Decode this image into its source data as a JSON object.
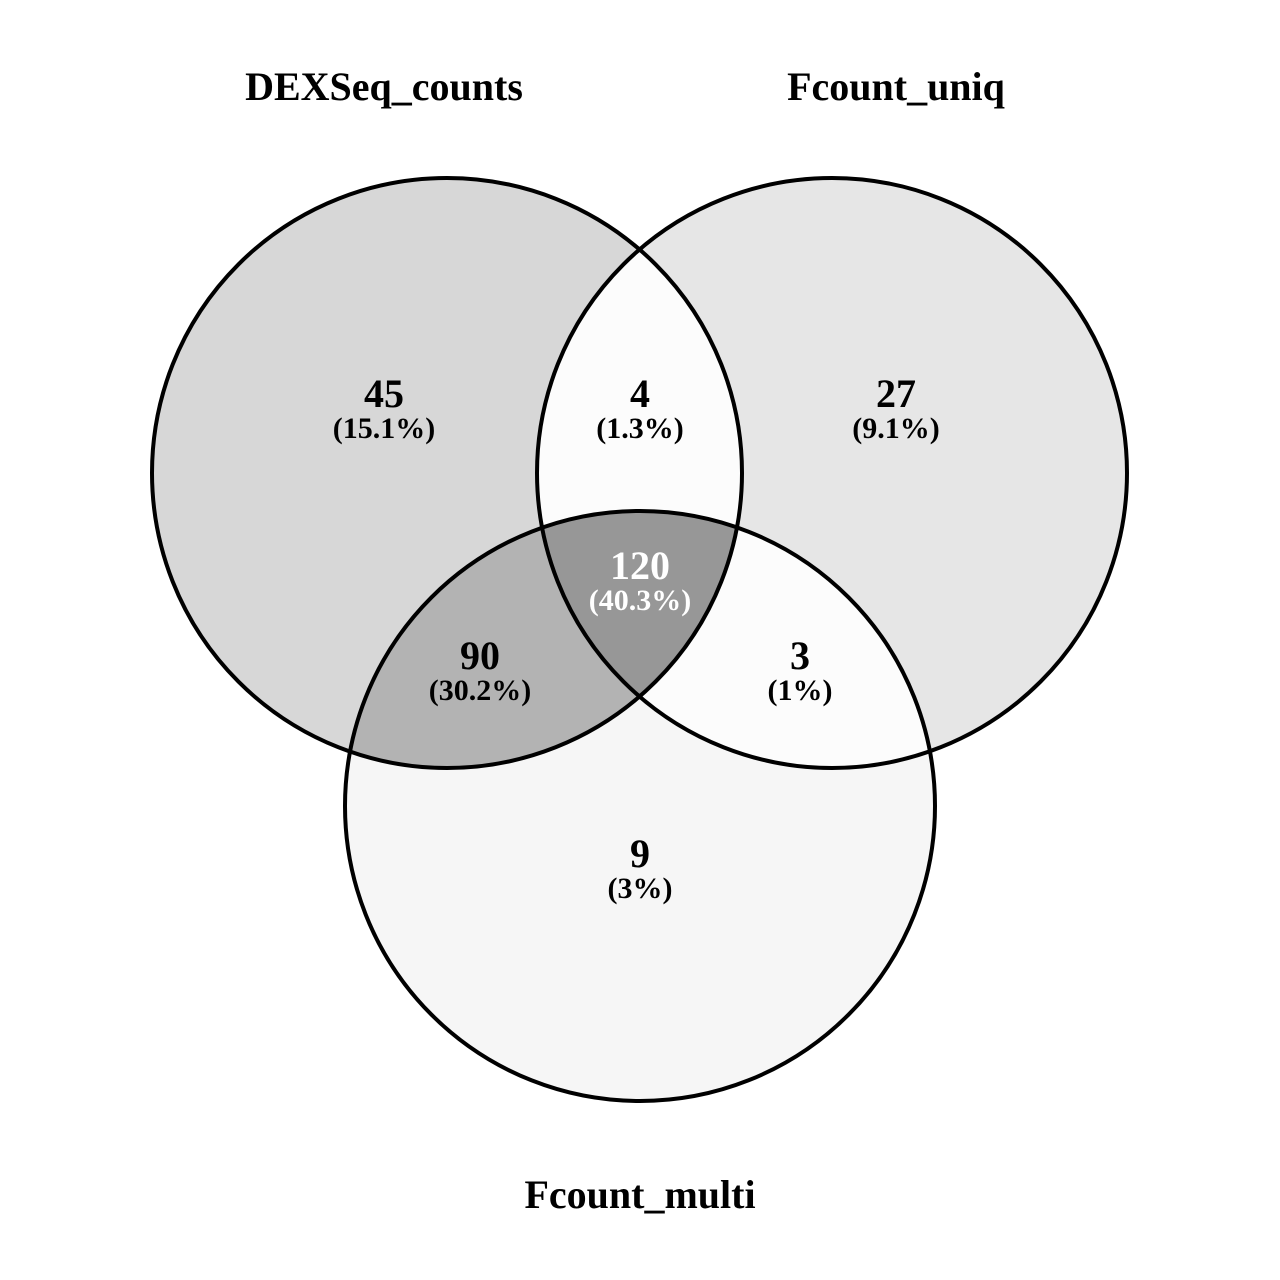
{
  "sets": {
    "a": "DEXSeq_counts",
    "b": "Fcount_uniq",
    "c": "Fcount_multi"
  },
  "regions": {
    "a_only": {
      "count": "45",
      "pct": "(15.1%)",
      "sets": [
        "DEXSeq_counts"
      ]
    },
    "ab": {
      "count": "4",
      "pct": "(1.3%)",
      "sets": [
        "DEXSeq_counts",
        "Fcount_uniq"
      ]
    },
    "b_only": {
      "count": "27",
      "pct": "(9.1%)",
      "sets": [
        "Fcount_uniq"
      ]
    },
    "abc": {
      "count": "120",
      "pct": "(40.3%)",
      "sets": [
        "DEXSeq_counts",
        "Fcount_uniq",
        "Fcount_multi"
      ]
    },
    "ac": {
      "count": "90",
      "pct": "(30.2%)",
      "sets": [
        "DEXSeq_counts",
        "Fcount_multi"
      ]
    },
    "bc": {
      "count": "3",
      "pct": "(1%)",
      "sets": [
        "Fcount_uniq",
        "Fcount_multi"
      ]
    },
    "c_only": {
      "count": "9",
      "pct": "(3%)",
      "sets": [
        "Fcount_multi"
      ]
    }
  },
  "colors": {
    "a_only": "#d7d7d7",
    "b_only": "#e6e6e6",
    "c_only": "#f6f6f6",
    "ab": "#fcfcfc",
    "bc": "#fcfcfc",
    "ac": "#b3b3b3",
    "abc": "#979797",
    "stroke": "#000000",
    "text_dark": "#000000",
    "text_light": "#ffffff"
  }
}
